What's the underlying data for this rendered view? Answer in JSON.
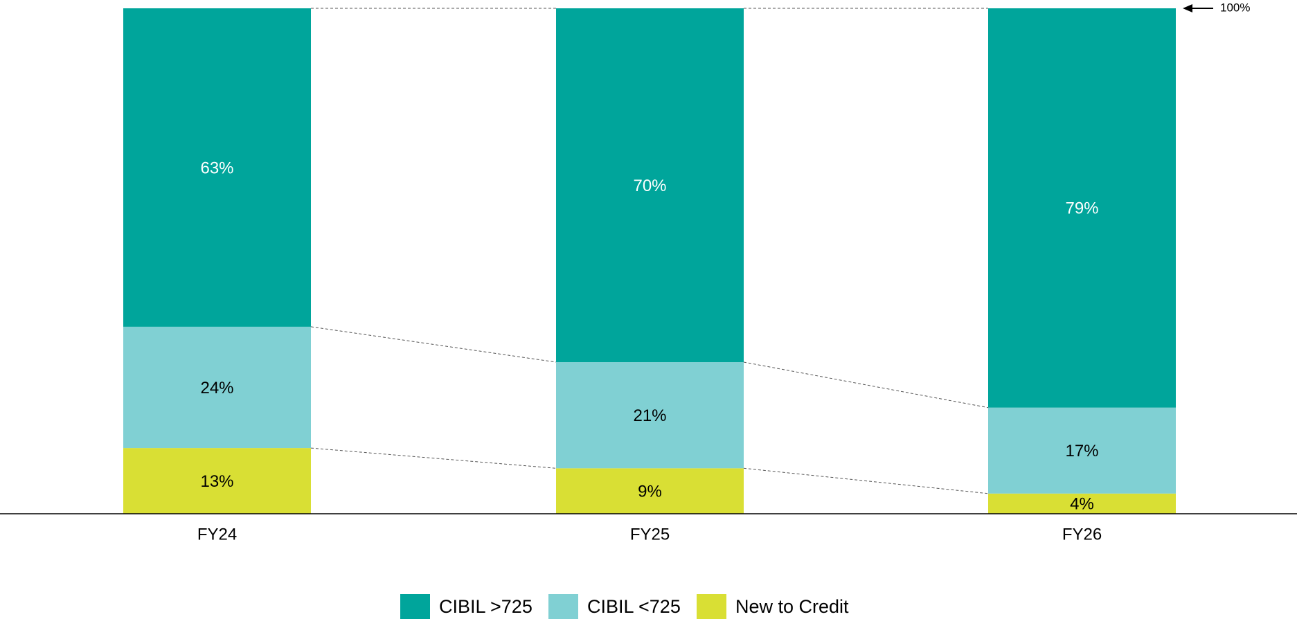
{
  "chart_data": {
    "type": "stacked_bar",
    "categories": [
      "FY24",
      "FY25",
      "FY26"
    ],
    "series": [
      {
        "name": "New to Credit",
        "color": "#d9df34",
        "values": [
          13,
          9,
          4
        ],
        "value_labels": [
          "13%",
          "9%",
          "4%"
        ]
      },
      {
        "name": "CIBIL <725",
        "color": "#80d0d3",
        "values": [
          24,
          21,
          17
        ],
        "value_labels": [
          "24%",
          "21%",
          "17%"
        ]
      },
      {
        "name": "CIBIL >725",
        "color": "#00a59b",
        "values": [
          63,
          70,
          79
        ],
        "value_labels": [
          "63%",
          "70%",
          "79%"
        ]
      }
    ],
    "ylim": [
      0,
      100
    ],
    "annotation": "100%",
    "legend": "bottom"
  }
}
